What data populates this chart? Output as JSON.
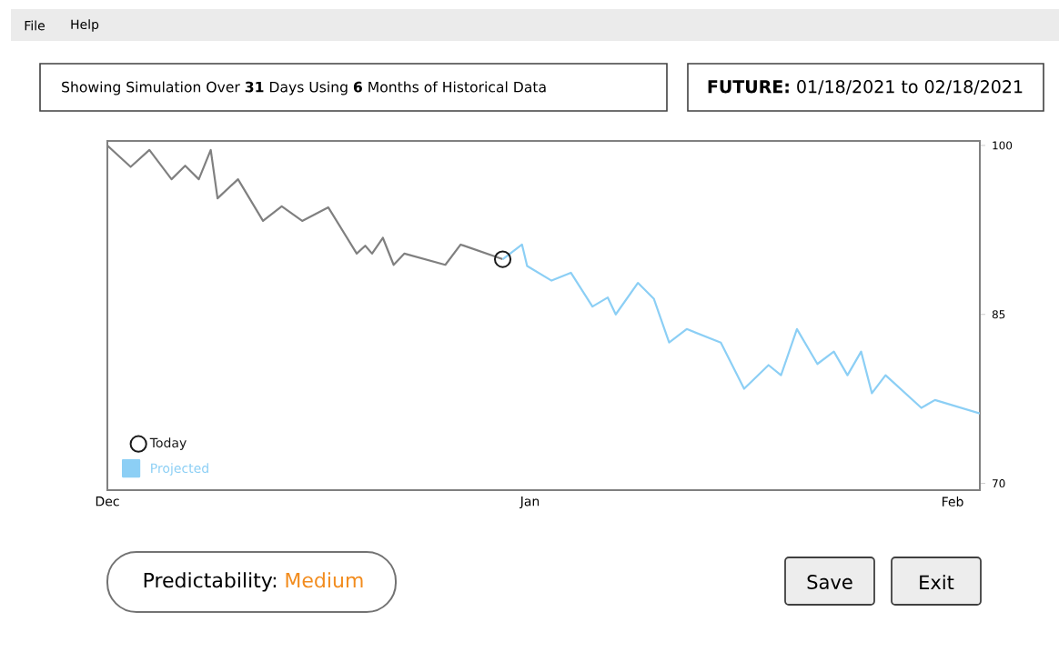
{
  "chart_data": {
    "type": "line",
    "title": "Showing Simulation Over **31** Days Using **6** Months of Historical Data",
    "subtitle": "**FUTURE:** 01/18/2021 to 02/18/2021",
    "xlim": [
      "2020-12-01",
      "2021-02-03"
    ],
    "xticks": [
      {
        "value": "2020-12-01",
        "label": "Dec"
      },
      {
        "value": "2021-01-01",
        "label": "Jan"
      },
      {
        "value": "2021-02-01",
        "label": "Feb"
      }
    ],
    "ylim": [
      69.4,
      100.4
    ],
    "yticks": [
      70,
      85,
      100
    ],
    "legend": "bottom left",
    "series": [
      {
        "color": "#808080",
        "marker": "none",
        "x": [
          "2020-12-01T00:00",
          "2020-12-02T17:00",
          "2020-12-04T02:00",
          "2020-12-05T17:00",
          "2020-12-06T17:00",
          "2020-12-07T17:00",
          "2020-12-08T14:00",
          "2020-12-09T02:00",
          "2020-12-10T14:00",
          "2020-12-12T10:00",
          "2020-12-13T19:00",
          "2020-12-15T07:00",
          "2020-12-17T05:00",
          "2020-12-19T07:00",
          "2020-12-19T22:00",
          "2020-12-20T10:00",
          "2020-12-21T05:00",
          "2020-12-22T00:00",
          "2020-12-22T19:00",
          "2020-12-25T19:00",
          "2020-12-26T22:00",
          "2020-12-30T00:00"
        ],
        "values": [
          100,
          98.1,
          99.6,
          97.0,
          98.2,
          97.0,
          99.6,
          95.3,
          97.0,
          93.3,
          94.6,
          93.3,
          94.5,
          90.4,
          91.1,
          90.4,
          91.8,
          89.4,
          90.4,
          89.4,
          91.2,
          89.9
        ]
      },
      {
        "type": "scatter",
        "name": "Today",
        "color": "#1a1a1a",
        "marker": "circle",
        "x": [
          "2020-12-30T00:00"
        ],
        "values": [
          89.9
        ]
      },
      {
        "name": "Projected",
        "color": "#8ccff5",
        "marker": "none",
        "x": [
          "2020-12-30T00:00",
          "2020-12-31T10:00",
          "2020-12-31T19:00",
          "2021-01-02T14:00",
          "2021-01-04T00:00",
          "2021-01-05T14:00",
          "2021-01-06T17:00",
          "2021-01-07T07:00",
          "2021-01-08T22:00",
          "2021-01-10T02:00",
          "2021-01-11T05:00",
          "2021-01-12T12:00",
          "2021-01-15T00:00",
          "2021-01-16T17:00",
          "2021-01-18T12:00",
          "2021-01-19T10:00",
          "2021-01-20T14:00",
          "2021-01-22T02:00",
          "2021-01-23T07:00",
          "2021-01-24T07:00",
          "2021-01-25T07:00",
          "2021-01-26T02:00",
          "2021-01-27T02:00",
          "2021-01-29T17:00",
          "2021-01-30T17:00",
          "2021-02-03T00:00"
        ],
        "values": [
          89.9,
          91.2,
          89.3,
          88.0,
          88.7,
          85.7,
          86.5,
          85.0,
          87.8,
          86.4,
          82.5,
          83.7,
          82.5,
          78.4,
          80.5,
          79.6,
          83.7,
          80.6,
          81.7,
          79.6,
          81.7,
          78.0,
          79.6,
          76.7,
          77.4,
          76.2
        ]
      }
    ],
    "annotations": [
      "File",
      "Help",
      "Predictability:",
      "Medium",
      "Save",
      "Exit"
    ]
  }
}
